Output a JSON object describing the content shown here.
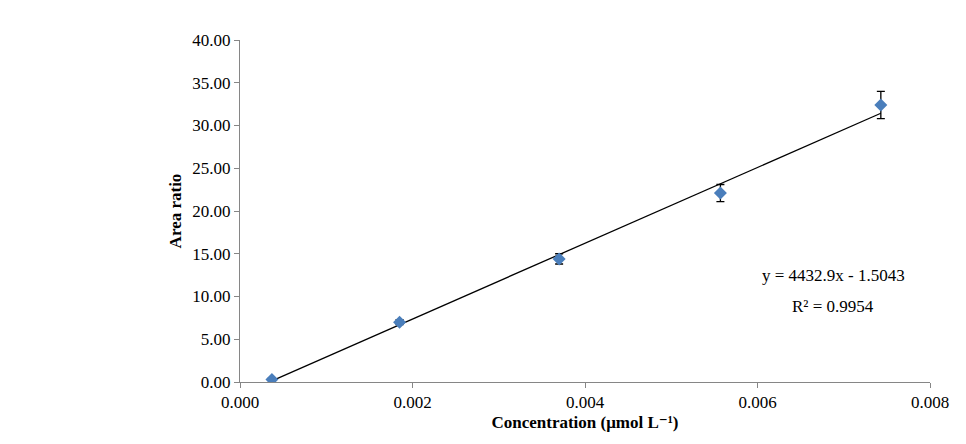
{
  "chart_data": {
    "type": "scatter",
    "x_label": "Concentration (μmol L⁻¹)",
    "y_label": "Area ratio",
    "xlim": [
      0,
      0.008
    ],
    "xticks": [
      {
        "value": 0,
        "label": "0.000"
      },
      {
        "value": 0.002,
        "label": "0.002"
      },
      {
        "value": 0.004,
        "label": "0.004"
      },
      {
        "value": 0.006,
        "label": "0.006"
      },
      {
        "value": 0.008,
        "label": "0.008"
      }
    ],
    "ylim": [
      0,
      40
    ],
    "yticks": [
      {
        "value": 0,
        "label": "0.00"
      },
      {
        "value": 5,
        "label": "5.00"
      },
      {
        "value": 10,
        "label": "10.00"
      },
      {
        "value": 15,
        "label": "15.00"
      },
      {
        "value": 20,
        "label": "20.00"
      },
      {
        "value": 25,
        "label": "25.00"
      },
      {
        "value": 30,
        "label": "30.00"
      },
      {
        "value": 35,
        "label": "35.00"
      },
      {
        "value": 40,
        "label": "40.00"
      }
    ],
    "grid": false,
    "series": [
      {
        "type": "scatter",
        "marker": "diamond",
        "color": "#4a7ebb",
        "x": [
          0.00037,
          0.00185,
          0.0037,
          0.00557,
          0.00743
        ],
        "values": [
          0.3,
          7.0,
          14.4,
          22.1,
          32.4
        ],
        "errors": [
          0.2,
          0.3,
          0.6,
          1.0,
          1.6
        ]
      },
      {
        "type": "line",
        "line_style": "solid",
        "color": "#000000",
        "x": [
          0.00037,
          0.00743
        ],
        "values": [
          0.14,
          31.43
        ]
      }
    ],
    "annotations": [
      "y = 4432.9x - 1.5043",
      "R² = 0.9954"
    ]
  }
}
